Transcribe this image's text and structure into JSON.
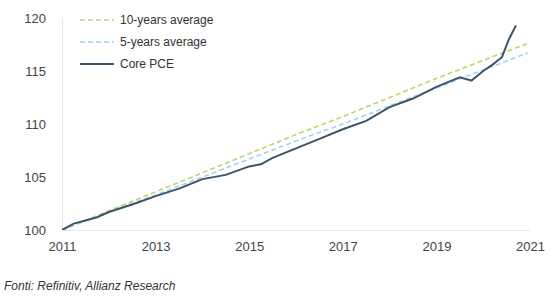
{
  "chart_data": {
    "type": "line",
    "source": "Fonti: Refinitiv, Allianz Research",
    "xlim": [
      2011,
      2021
    ],
    "xticks": [
      2011,
      2013,
      2015,
      2017,
      2019,
      2021
    ],
    "ylim": [
      100,
      120
    ],
    "yticks": [
      100,
      105,
      110,
      115,
      120
    ],
    "grid": false,
    "legend": "top-left",
    "series": [
      {
        "name": "10-years average",
        "color": "#bfd46a",
        "line_style": "dashed",
        "x": [
          2011,
          2012,
          2013,
          2014,
          2015,
          2016,
          2017,
          2018,
          2019,
          2020,
          2020.95
        ],
        "values": [
          100,
          101.8,
          103.6,
          105.4,
          107.2,
          109.0,
          110.7,
          112.5,
          114.3,
          116.0,
          117.6
        ]
      },
      {
        "name": "5-years average",
        "color": "#9fd4ef",
        "line_style": "dashed",
        "x": [
          2011,
          2012,
          2013,
          2014,
          2015,
          2016,
          2017,
          2018,
          2019,
          2020,
          2020.95
        ],
        "values": [
          100,
          101.7,
          103.3,
          105.0,
          106.7,
          108.4,
          110.0,
          111.7,
          113.4,
          115.1,
          116.7
        ]
      },
      {
        "name": "Core PCE",
        "color": "#3e5468",
        "line_style": "solid",
        "x": [
          2011,
          2011.25,
          2011.5,
          2011.75,
          2012,
          2012.5,
          2013,
          2013.5,
          2014,
          2014.5,
          2015,
          2015.25,
          2015.5,
          2016,
          2016.5,
          2017,
          2017.5,
          2018,
          2018.5,
          2019,
          2019.5,
          2019.75,
          2020,
          2020.2,
          2020.4,
          2020.55,
          2020.7
        ],
        "values": [
          100,
          100.6,
          100.9,
          101.2,
          101.7,
          102.4,
          103.2,
          103.9,
          104.8,
          105.2,
          106.0,
          106.2,
          106.8,
          107.7,
          108.6,
          109.5,
          110.3,
          111.6,
          112.4,
          113.5,
          114.4,
          114.1,
          115.0,
          115.6,
          116.3,
          118.0,
          119.3
        ]
      }
    ]
  }
}
